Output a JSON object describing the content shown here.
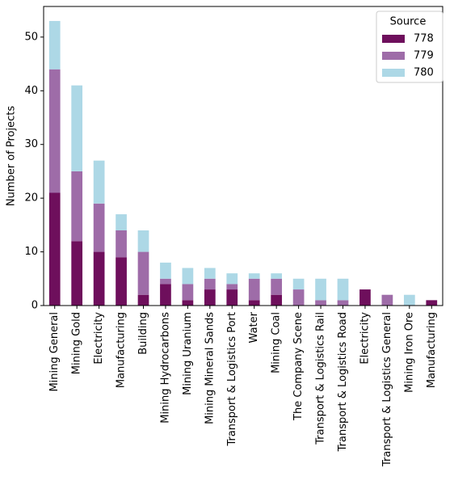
{
  "chart_data": {
    "type": "bar",
    "stacked": true,
    "ylabel": "Number of Projects",
    "categories": [
      "Mining General",
      "Mining Gold",
      "Electricity",
      "Manufacturing",
      "Building",
      "Mining Hydrocarbons",
      "Mining Uranium",
      "Mining Mineral Sands",
      "Transport & Logistics Port",
      "Water",
      "Mining Coal",
      "The Company Scene",
      "Transport & Logistics Rail",
      "Transport & Logistics Road",
      "Electricity",
      "Transport & Logistics General",
      "Mining Iron Ore",
      "Manufacturing"
    ],
    "legend_title": "Source",
    "legend": "upper right",
    "series": [
      {
        "name": "778",
        "color": "#6e0f5c",
        "values": [
          21,
          12,
          10,
          9,
          2,
          4,
          1,
          3,
          3,
          1,
          2,
          0,
          0,
          0,
          3,
          0,
          0,
          1
        ]
      },
      {
        "name": "779",
        "color": "#9e6ca8",
        "values": [
          23,
          13,
          9,
          5,
          8,
          1,
          3,
          2,
          1,
          4,
          3,
          3,
          1,
          1,
          0,
          2,
          0,
          0
        ]
      },
      {
        "name": "780",
        "color": "#add8e6",
        "values": [
          9,
          16,
          8,
          3,
          4,
          3,
          3,
          2,
          2,
          1,
          1,
          2,
          4,
          4,
          0,
          0,
          2,
          0
        ]
      }
    ],
    "ylim": [
      0,
      55.7
    ],
    "yticks": [
      0,
      10,
      20,
      30,
      40,
      50
    ]
  }
}
